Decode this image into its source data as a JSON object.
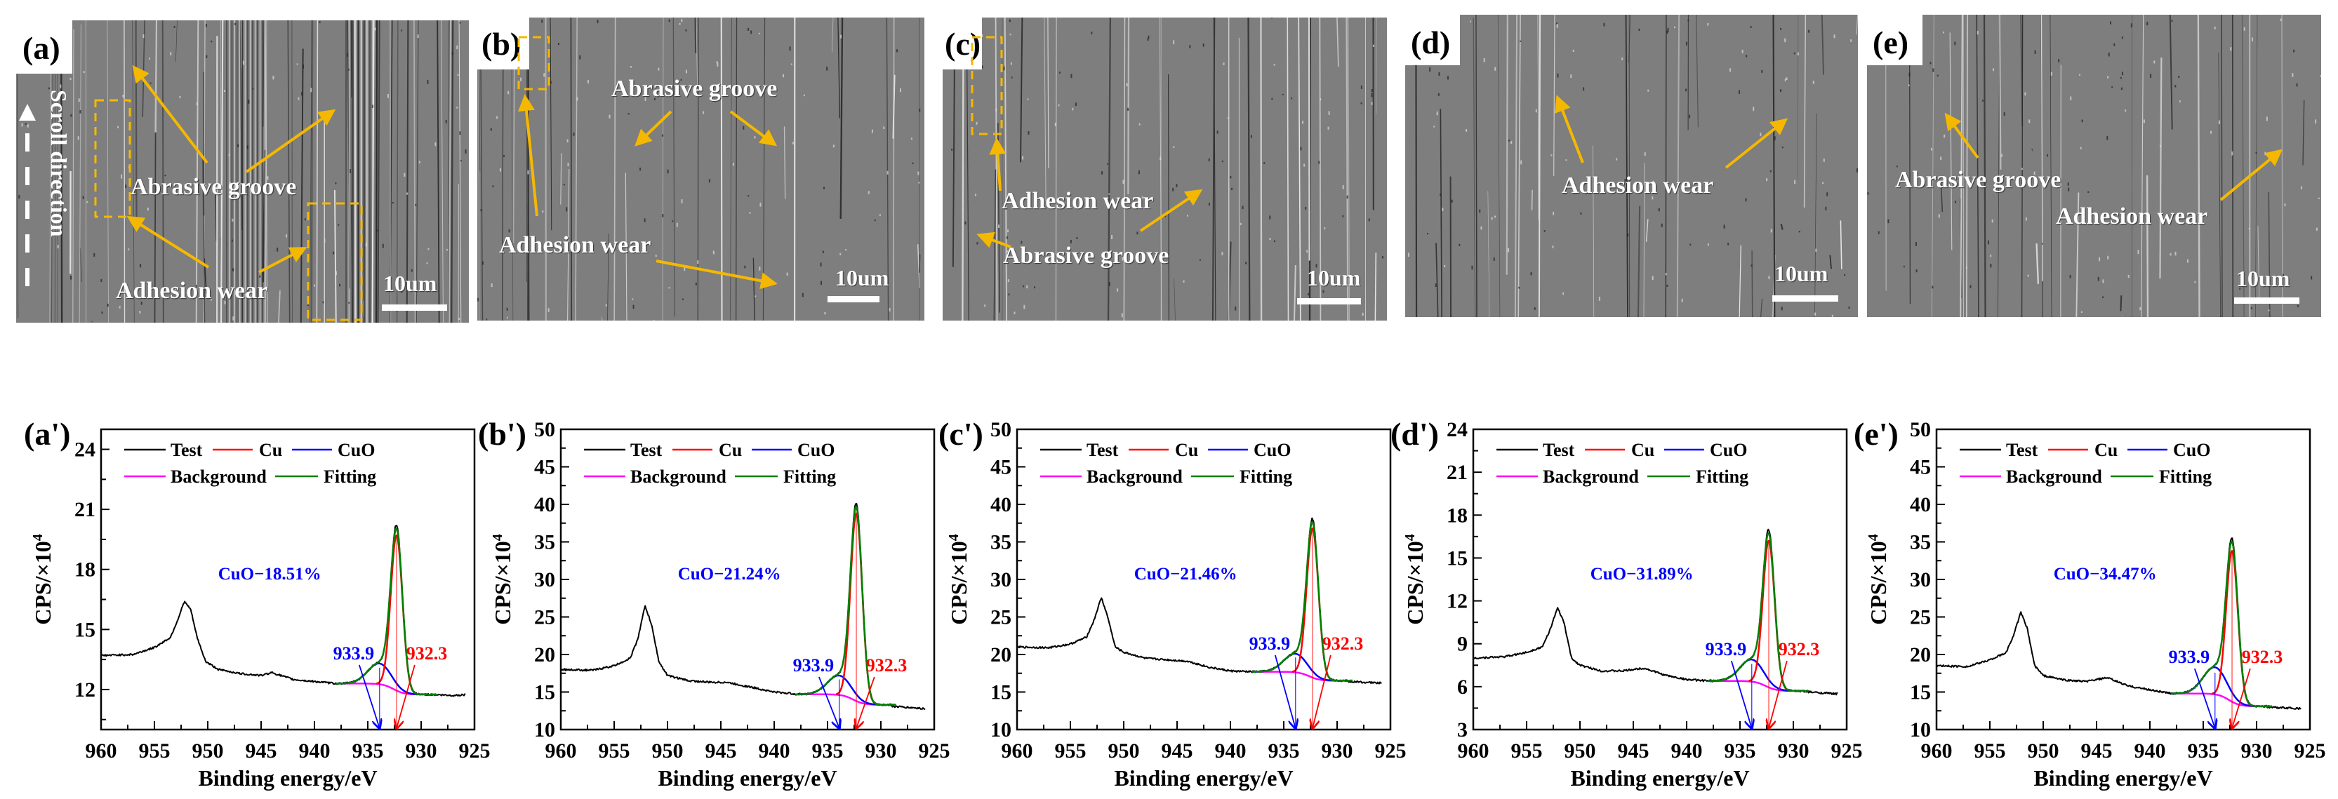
{
  "sem_panels": [
    {
      "label": "(a)",
      "scroll_direction": "Scroll direction",
      "annotations": [
        "Abrasive groove",
        "Adhesion wear"
      ],
      "scale_bar": "10um"
    },
    {
      "label": "(b)",
      "annotations": [
        "Abrasive groove",
        "Adhesion wear"
      ],
      "scale_bar": "10um"
    },
    {
      "label": "(c)",
      "annotations": [
        "Adhesion wear",
        "Abrasive groove"
      ],
      "scale_bar": "10um"
    },
    {
      "label": "(d)",
      "annotations": [
        "Adhesion wear"
      ],
      "scale_bar": "10um"
    },
    {
      "label": "(e)",
      "annotations": [
        "Abrasive groove",
        "Adhesion wear"
      ],
      "scale_bar": "10um"
    }
  ],
  "colors": {
    "test": "#000000",
    "cu": "#ff0000",
    "cuo": "#0000ff",
    "background": "#ff00ff",
    "fitting": "#008000",
    "arrow": "#f5b800"
  },
  "chart_data": [
    {
      "panel_label": "(a')",
      "type": "line",
      "xlabel": "Binding energy/eV",
      "ylabel": "CPS/×10",
      "ylabel_exp": "4",
      "xlim": [
        960,
        925
      ],
      "ylim": [
        10,
        25
      ],
      "xticks": [
        "960",
        "955",
        "950",
        "945",
        "940",
        "935",
        "930",
        "925"
      ],
      "yticks": [
        "12",
        "15",
        "18",
        "21",
        "24"
      ],
      "legend": [
        "Test",
        "Cu",
        "CuO",
        "Background",
        "Fitting"
      ],
      "annotation": "CuO−18.51%",
      "cuo": {
        "label": "933.9",
        "center": 933.9,
        "peak": 13.3,
        "sigma": 1.1
      },
      "cu": {
        "label": "932.3",
        "center": 932.3,
        "peak": 19.7,
        "sigma": 0.55
      },
      "background": [
        12.3,
        11.75
      ],
      "test_points": [
        [
          960,
          13.7
        ],
        [
          957,
          13.75
        ],
        [
          955,
          14.1
        ],
        [
          953.5,
          14.6
        ],
        [
          952.8,
          15.5
        ],
        [
          952.2,
          16.4
        ],
        [
          951.6,
          16.0
        ],
        [
          951,
          14.6
        ],
        [
          950.2,
          13.4
        ],
        [
          949,
          13.0
        ],
        [
          947,
          12.8
        ],
        [
          945,
          12.7
        ],
        [
          944,
          12.85
        ],
        [
          942,
          12.5
        ],
        [
          940,
          12.4
        ],
        [
          938,
          12.3
        ],
        [
          929,
          11.75
        ],
        [
          927,
          11.7
        ],
        [
          925.8,
          11.75
        ]
      ]
    },
    {
      "panel_label": "(b')",
      "type": "line",
      "xlabel": "Binding energy/eV",
      "ylabel": "CPS/×10",
      "ylabel_exp": "4",
      "xlim": [
        960,
        925
      ],
      "ylim": [
        10,
        50
      ],
      "xticks": [
        "960",
        "955",
        "950",
        "945",
        "940",
        "935",
        "930",
        "925"
      ],
      "yticks": [
        "10",
        "15",
        "20",
        "25",
        "30",
        "35",
        "40",
        "45",
        "50"
      ],
      "legend": [
        "Test",
        "Cu",
        "CuO",
        "Background",
        "Fitting"
      ],
      "annotation": "CuO−21.24%",
      "cuo": {
        "label": "933.9",
        "center": 933.9,
        "peak": 17.2,
        "sigma": 1.1
      },
      "cu": {
        "label": "932.3",
        "center": 932.3,
        "peak": 38.8,
        "sigma": 0.55
      },
      "background": [
        14.7,
        13.3
      ],
      "test_points": [
        [
          960,
          18.0
        ],
        [
          957,
          17.9
        ],
        [
          955,
          18.5
        ],
        [
          953.5,
          19.5
        ],
        [
          952.8,
          22.0
        ],
        [
          952.1,
          26.5
        ],
        [
          951.5,
          24.0
        ],
        [
          950.8,
          19.0
        ],
        [
          950,
          17.2
        ],
        [
          948,
          16.5
        ],
        [
          946,
          16.3
        ],
        [
          944.5,
          16.3
        ],
        [
          942,
          15.6
        ],
        [
          940,
          15.0
        ],
        [
          938,
          14.75
        ],
        [
          929,
          13.1
        ],
        [
          927,
          12.9
        ],
        [
          926,
          12.8
        ]
      ]
    },
    {
      "panel_label": "(c')",
      "type": "line",
      "xlabel": "Binding energy/eV",
      "ylabel": "CPS/×10",
      "ylabel_exp": "4",
      "xlim": [
        960,
        925
      ],
      "ylim": [
        10,
        50
      ],
      "xticks": [
        "960",
        "955",
        "950",
        "945",
        "940",
        "935",
        "930",
        "925"
      ],
      "yticks": [
        "10",
        "15",
        "20",
        "25",
        "30",
        "35",
        "40",
        "45",
        "50"
      ],
      "legend": [
        "Test",
        "Cu",
        "CuO",
        "Background",
        "Fitting"
      ],
      "annotation": "CuO−21.46%",
      "cuo": {
        "label": "933.9",
        "center": 933.9,
        "peak": 20.1,
        "sigma": 1.1
      },
      "cu": {
        "label": "932.3",
        "center": 932.3,
        "peak": 36.8,
        "sigma": 0.55
      },
      "background": [
        17.7,
        16.5
      ],
      "test_points": [
        [
          960,
          21.0
        ],
        [
          957,
          20.9
        ],
        [
          955,
          21.4
        ],
        [
          953.5,
          22.3
        ],
        [
          952.8,
          24.5
        ],
        [
          952.1,
          27.6
        ],
        [
          951.5,
          25.0
        ],
        [
          950.8,
          21.0
        ],
        [
          950,
          20.3
        ],
        [
          948,
          19.5
        ],
        [
          946,
          19.3
        ],
        [
          944,
          19.1
        ],
        [
          942,
          18.3
        ],
        [
          940,
          17.8
        ],
        [
          938,
          17.7
        ],
        [
          929,
          16.4
        ],
        [
          926,
          16.2
        ]
      ]
    },
    {
      "panel_label": "(d')",
      "type": "line",
      "xlabel": "Binding energy/eV",
      "ylabel": "CPS/×10",
      "ylabel_exp": "4",
      "xlim": [
        960,
        925
      ],
      "ylim": [
        3,
        24
      ],
      "xticks": [
        "960",
        "955",
        "950",
        "945",
        "940",
        "935",
        "930",
        "925"
      ],
      "yticks": [
        "3",
        "6",
        "9",
        "12",
        "15",
        "18",
        "21",
        "24"
      ],
      "legend": [
        "Test",
        "Cu",
        "CuO",
        "Background",
        "Fitting"
      ],
      "annotation": "CuO−31.89%",
      "cuo": {
        "label": "933.9",
        "center": 933.9,
        "peak": 7.9,
        "sigma": 1.1
      },
      "cu": {
        "label": "932.3",
        "center": 932.3,
        "peak": 16.2,
        "sigma": 0.55
      },
      "background": [
        6.4,
        5.7
      ],
      "test_points": [
        [
          960,
          8.0
        ],
        [
          957,
          8.1
        ],
        [
          955,
          8.4
        ],
        [
          953.5,
          8.8
        ],
        [
          952.8,
          10.0
        ],
        [
          952.1,
          11.5
        ],
        [
          951.5,
          10.5
        ],
        [
          950.8,
          8.0
        ],
        [
          950,
          7.5
        ],
        [
          948,
          7.1
        ],
        [
          946,
          7.1
        ],
        [
          944,
          7.3
        ],
        [
          942,
          6.8
        ],
        [
          940,
          6.5
        ],
        [
          938,
          6.4
        ],
        [
          929,
          5.65
        ],
        [
          926,
          5.5
        ]
      ]
    },
    {
      "panel_label": "(e')",
      "type": "line",
      "xlabel": "Binding energy/eV",
      "ylabel": "CPS/×10",
      "ylabel_exp": "4",
      "xlim": [
        960,
        925
      ],
      "ylim": [
        10,
        50
      ],
      "xticks": [
        "960",
        "955",
        "950",
        "945",
        "940",
        "935",
        "930",
        "925"
      ],
      "yticks": [
        "10",
        "15",
        "20",
        "25",
        "30",
        "35",
        "40",
        "45",
        "50"
      ],
      "legend": [
        "Test",
        "Cu",
        "CuO",
        "Background",
        "Fitting"
      ],
      "annotation": "CuO−34.47%",
      "cuo": {
        "label": "933.9",
        "center": 933.9,
        "peak": 18.3,
        "sigma": 1.1
      },
      "cu": {
        "label": "932.3",
        "center": 932.3,
        "peak": 33.8,
        "sigma": 0.55
      },
      "background": [
        14.8,
        13.1
      ],
      "test_points": [
        [
          960,
          18.5
        ],
        [
          957,
          18.4
        ],
        [
          955,
          19.3
        ],
        [
          953.5,
          20.2
        ],
        [
          952.8,
          22.5
        ],
        [
          952.1,
          25.6
        ],
        [
          951.5,
          23.5
        ],
        [
          950.8,
          18.5
        ],
        [
          950,
          17.2
        ],
        [
          948,
          16.6
        ],
        [
          946,
          16.4
        ],
        [
          944,
          16.9
        ],
        [
          942,
          15.8
        ],
        [
          940,
          15.3
        ],
        [
          938,
          14.8
        ],
        [
          929,
          13.0
        ],
        [
          926,
          12.8
        ]
      ]
    }
  ]
}
